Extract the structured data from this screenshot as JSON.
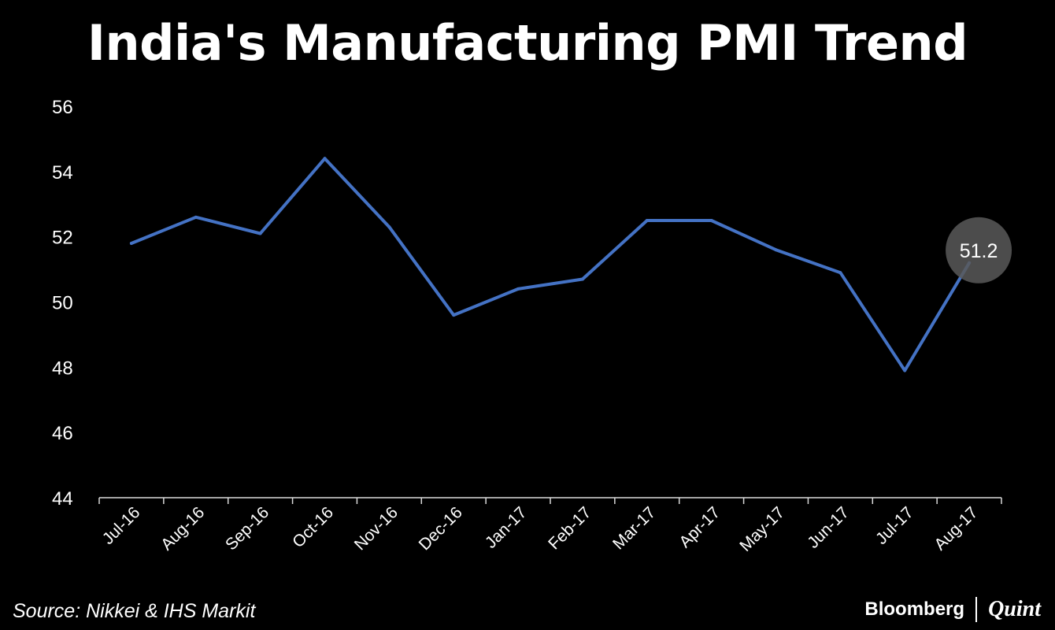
{
  "header": {
    "title": "India's Manufacturing PMI Trend"
  },
  "chart_data": {
    "type": "line",
    "title": "India's Manufacturing PMI Trend",
    "xlabel": "",
    "ylabel": "",
    "ylim": [
      44,
      56
    ],
    "yticks": [
      44,
      46,
      48,
      50,
      52,
      54,
      56
    ],
    "grid": false,
    "categories": [
      "Jul-16",
      "Aug-16",
      "Sep-16",
      "Oct-16",
      "Nov-16",
      "Dec-16",
      "Jan-17",
      "Feb-17",
      "Mar-17",
      "Apr-17",
      "May-17",
      "Jun-17",
      "Jul-17",
      "Aug-17"
    ],
    "series": [
      {
        "values": [
          51.8,
          52.6,
          52.1,
          54.4,
          52.3,
          49.6,
          50.4,
          50.7,
          52.5,
          52.5,
          51.6,
          50.9,
          47.9,
          51.2
        ]
      }
    ],
    "annotation": {
      "category": "Aug-17",
      "label": "51.2"
    },
    "colors": {
      "line": "#4472C4",
      "background": "#000000",
      "highlight": "#595959"
    }
  },
  "footer": {
    "source": "Source: Nikkei & IHS Markit",
    "logo_left": "Bloomberg",
    "logo_right": "Quint"
  }
}
